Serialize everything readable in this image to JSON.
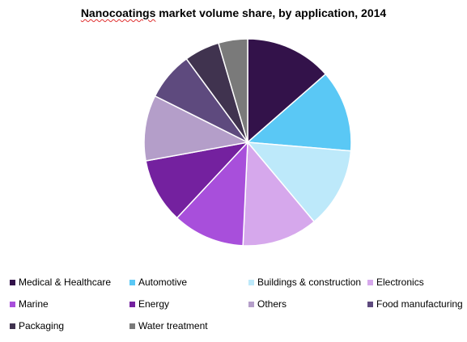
{
  "chart_data": {
    "type": "pie",
    "title": "Nanocoatings market volume share, by application, 2014",
    "title_flagged_word": "Nanocoatings",
    "title_rest": " market volume share, by application, 2014",
    "start_angle_deg": 0,
    "direction": "clockwise",
    "legend_position": "bottom",
    "slices": [
      {
        "label": "Medical & Healthcare",
        "value": 14.0,
        "color": "#33124a"
      },
      {
        "label": "Automotive",
        "value": 13.2,
        "color": "#5ac8f5"
      },
      {
        "label": "Buildings & construction",
        "value": 13.0,
        "color": "#bde9fa"
      },
      {
        "label": "Electronics",
        "value": 12.2,
        "color": "#d6a8ec"
      },
      {
        "label": "Marine",
        "value": 11.6,
        "color": "#a84fdb"
      },
      {
        "label": "Energy",
        "value": 10.5,
        "color": "#74219f"
      },
      {
        "label": "Others",
        "value": 10.6,
        "color": "#b49ec9"
      },
      {
        "label": "Food manufacturing",
        "value": 7.8,
        "color": "#5e4a7e"
      },
      {
        "label": "Packaging",
        "value": 5.7,
        "color": "#40334f"
      },
      {
        "label": "Water treatment",
        "value": 4.7,
        "color": "#7a7a7a"
      }
    ]
  }
}
